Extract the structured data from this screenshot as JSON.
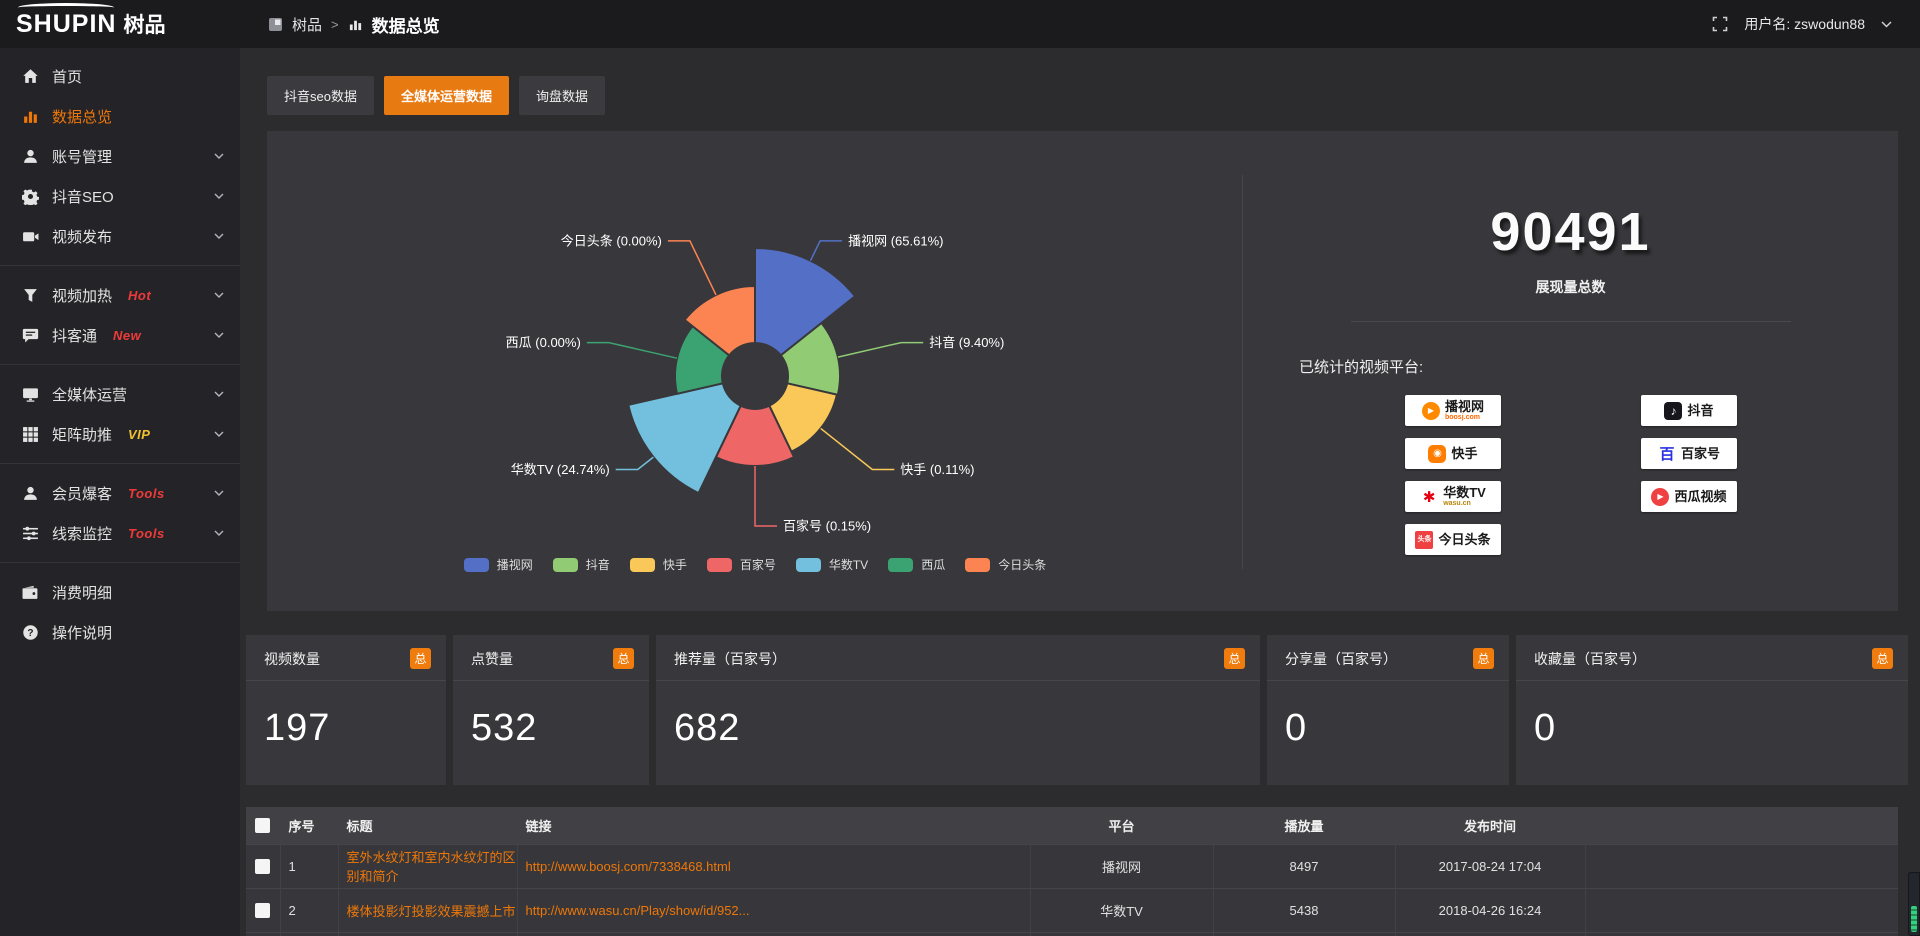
{
  "topbar": {
    "logo_text": "SHUPIN",
    "logo_suffix": "树品",
    "breadcrumb_root": "树品",
    "breadcrumb_sep": ">",
    "breadcrumb_current": "数据总览",
    "username": "用户名: zswodun88"
  },
  "sidebar": {
    "items": [
      {
        "icon": "home",
        "label": "首页"
      },
      {
        "icon": "chart",
        "label": "数据总览",
        "active": true
      },
      {
        "icon": "user",
        "label": "账号管理",
        "chevron": true
      },
      {
        "icon": "gear",
        "label": "抖音SEO",
        "chevron": true
      },
      {
        "icon": "video",
        "label": "视频发布",
        "chevron": true,
        "divider": true
      },
      {
        "icon": "heat",
        "label": "视频加热",
        "badge": "Hot",
        "badge_color": "#f03a3a",
        "chevron": true
      },
      {
        "icon": "chat",
        "label": "抖客通",
        "badge": "New",
        "badge_color": "#f03a3a",
        "chevron": true,
        "divider": true
      },
      {
        "icon": "monitor",
        "label": "全媒体运营",
        "chevron": true
      },
      {
        "icon": "grid",
        "label": "矩阵助推",
        "badge": "VIP",
        "badge_color": "#f2c12e",
        "chevron": true,
        "divider": true
      },
      {
        "icon": "member",
        "label": "会员爆客",
        "badge": "Tools",
        "badge_color": "#f03a3a",
        "chevron": true
      },
      {
        "icon": "sliders",
        "label": "线索监控",
        "badge": "Tools",
        "badge_color": "#f03a3a",
        "chevron": true,
        "divider": true
      },
      {
        "icon": "wallet",
        "label": "消费明细"
      },
      {
        "icon": "question",
        "label": "操作说明"
      }
    ]
  },
  "tabs": [
    {
      "label": "抖音seo数据",
      "active": false
    },
    {
      "label": "全媒体运营数据",
      "active": true
    },
    {
      "label": "询盘数据",
      "active": false
    }
  ],
  "chart_data": {
    "type": "pie",
    "variant": "nightingale-rose",
    "legend_position": "bottom",
    "label_format": "{name} ({pct})",
    "series": [
      {
        "name": "播视网",
        "value": 65.61,
        "pct": "65.61%",
        "color": "#5470c6"
      },
      {
        "name": "抖音",
        "value": 9.4,
        "pct": "9.40%",
        "color": "#91cc75"
      },
      {
        "name": "快手",
        "value": 0.11,
        "pct": "0.11%",
        "color": "#fac858"
      },
      {
        "name": "百家号",
        "value": 0.15,
        "pct": "0.15%",
        "color": "#ee6666"
      },
      {
        "name": "华数TV",
        "value": 24.74,
        "pct": "24.74%",
        "color": "#73c0de"
      },
      {
        "name": "西瓜",
        "value": 0.0,
        "pct": "0.00%",
        "color": "#3ba272"
      },
      {
        "name": "今日头条",
        "value": 0.0,
        "pct": "0.00%",
        "color": "#fc8452"
      }
    ]
  },
  "overview": {
    "total": "90491",
    "total_label": "展现量总数",
    "platforms_label": "已统计的视频平台:",
    "platforms": [
      {
        "icon": "boosj",
        "name": "播视网",
        "sub": "boosj.com"
      },
      {
        "icon": "douyin",
        "name": "抖音"
      },
      {
        "icon": "kuaishou",
        "name": "快手"
      },
      {
        "icon": "baijia",
        "name": "百家号"
      },
      {
        "icon": "wasu",
        "name": "华数TV",
        "sub": "wasu.cn"
      },
      {
        "icon": "xigua",
        "name": "西瓜视频"
      },
      {
        "icon": "toutiao",
        "name": "今日头条"
      }
    ]
  },
  "stats": [
    {
      "label": "视频数量",
      "badge": "总",
      "value": "197"
    },
    {
      "label": "点赞量",
      "badge": "总",
      "value": "532"
    },
    {
      "label": "推荐量（百家号）",
      "badge": "总",
      "value": "682"
    },
    {
      "label": "分享量（百家号）",
      "badge": "总",
      "value": "0"
    },
    {
      "label": "收藏量（百家号）",
      "badge": "总",
      "value": "0"
    }
  ],
  "table": {
    "headers": [
      "序号",
      "标题",
      "链接",
      "平台",
      "播放量",
      "发布时间"
    ],
    "rows": [
      {
        "num": "1",
        "title": "室外水纹灯和室内水纹灯的区别和简介",
        "link": "http://www.boosj.com/7338468.html",
        "platform": "播视网",
        "plays": "8497",
        "time": "2017-08-24 17:04"
      },
      {
        "num": "2",
        "title": "楼体投影灯投影效果震撼上市",
        "link": "http://www.wasu.cn/Play/show/id/952...",
        "platform": "华数TV",
        "plays": "5438",
        "time": "2018-04-26 16:24"
      }
    ]
  },
  "colors": {
    "accent_orange": "#ee7708",
    "tab_active": "#e87a12",
    "badge_orange": "#f07c0e"
  }
}
